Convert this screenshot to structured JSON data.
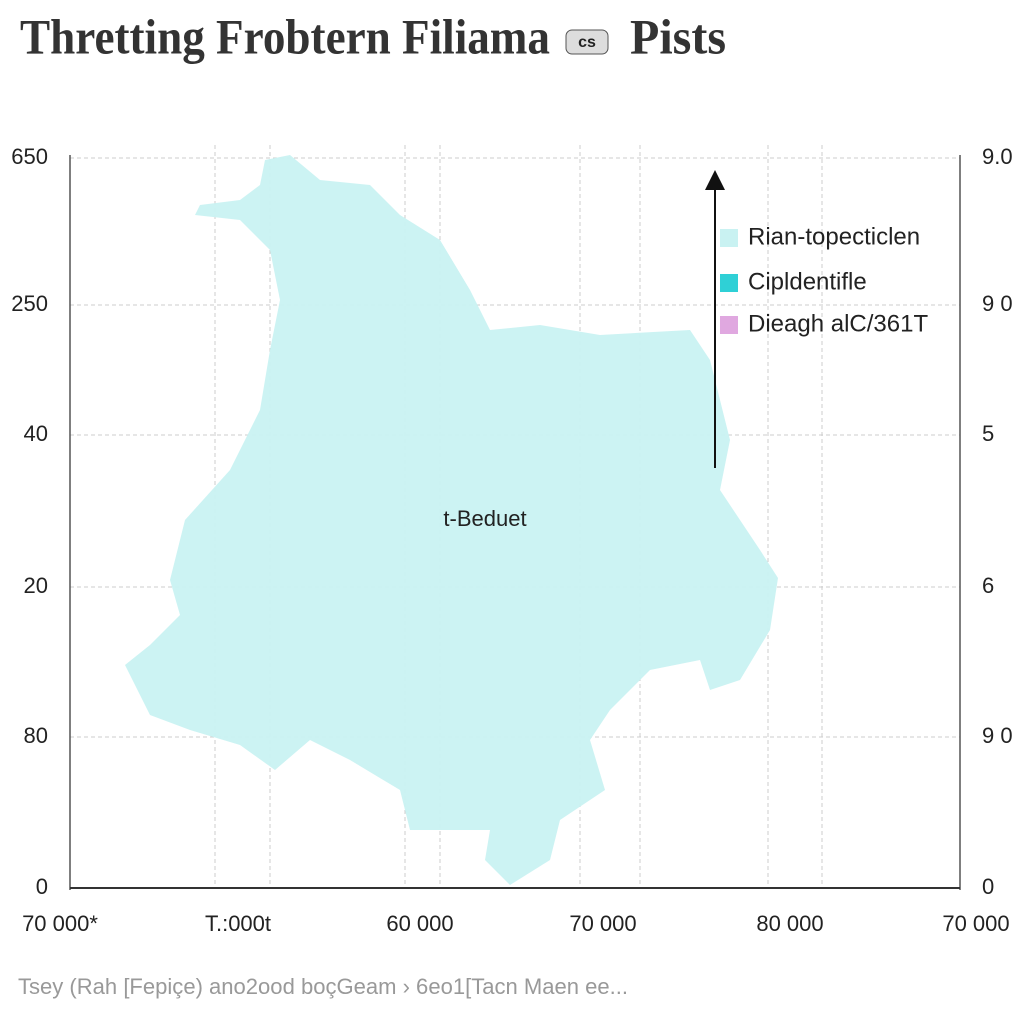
{
  "title": "Thretting Frobtern Filiama",
  "title_badge": "cs",
  "title_tail": "Pists",
  "left_labels": [
    "650",
    "250",
    "40",
    "20",
    "80",
    "0"
  ],
  "right_labels": [
    "9.0",
    "9 0",
    "5",
    "6",
    "9 0",
    "0"
  ],
  "bottom_labels": [
    "70 000*",
    "T.:000t",
    "60 000",
    "70 000",
    "80 000",
    "70 000"
  ],
  "legend": [
    {
      "label": "Rian-topecticlen",
      "color": "#c9f2f2"
    },
    {
      "label": "Cipldentifle",
      "color": "#2fd0d6"
    },
    {
      "label": "Dieagh alC/361T",
      "color": "#e0a8e0"
    }
  ],
  "annotation": "t-Beduet",
  "footer": "Tsey (Rah [Fepiçe) ano2ood boçGeam › 6eo1[Tacn Maen ee..."
}
